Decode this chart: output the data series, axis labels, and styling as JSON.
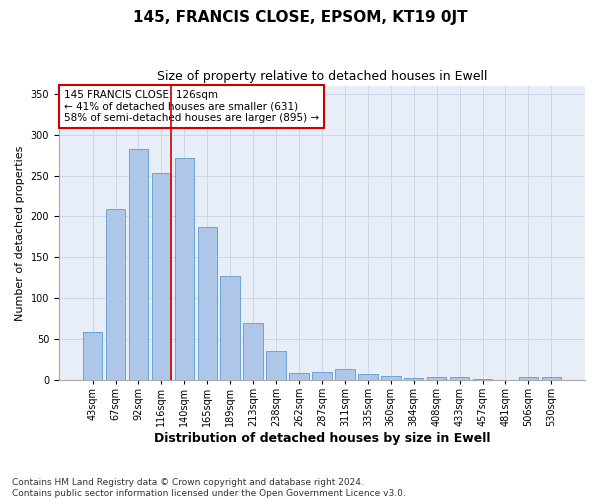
{
  "title": "145, FRANCIS CLOSE, EPSOM, KT19 0JT",
  "subtitle": "Size of property relative to detached houses in Ewell",
  "xlabel": "Distribution of detached houses by size in Ewell",
  "ylabel": "Number of detached properties",
  "categories": [
    "43sqm",
    "67sqm",
    "92sqm",
    "116sqm",
    "140sqm",
    "165sqm",
    "189sqm",
    "213sqm",
    "238sqm",
    "262sqm",
    "287sqm",
    "311sqm",
    "335sqm",
    "360sqm",
    "384sqm",
    "408sqm",
    "433sqm",
    "457sqm",
    "481sqm",
    "506sqm",
    "530sqm"
  ],
  "values": [
    59,
    209,
    283,
    253,
    271,
    187,
    127,
    70,
    35,
    9,
    10,
    13,
    7,
    5,
    2,
    4,
    4,
    1,
    0,
    4,
    4
  ],
  "bar_color": "#aec6e8",
  "bar_edge_color": "#5b9bd5",
  "annotation_text_line1": "145 FRANCIS CLOSE: 126sqm",
  "annotation_text_line2": "← 41% of detached houses are smaller (631)",
  "annotation_text_line3": "58% of semi-detached houses are larger (895) →",
  "annotation_box_color": "#ffffff",
  "annotation_box_edge_color": "#cc0000",
  "vline_color": "#cc0000",
  "grid_color": "#ccd6e8",
  "background_color": "#e8eef8",
  "footnote": "Contains HM Land Registry data © Crown copyright and database right 2024.\nContains public sector information licensed under the Open Government Licence v3.0.",
  "ylim": [
    0,
    360
  ],
  "title_fontsize": 11,
  "subtitle_fontsize": 9,
  "ylabel_fontsize": 8,
  "xlabel_fontsize": 9,
  "tick_fontsize": 7,
  "annotation_fontsize": 7.5,
  "footnote_fontsize": 6.5
}
